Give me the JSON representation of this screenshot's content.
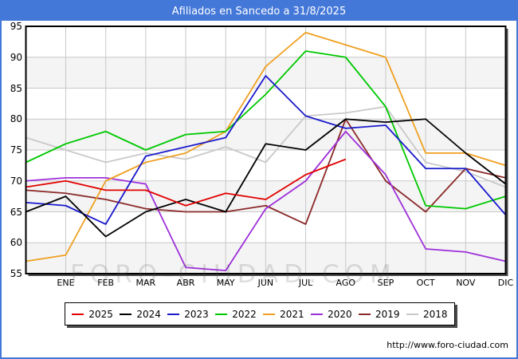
{
  "title": "Afiliados en Sancedo a 31/8/2025",
  "watermark": "FORO-CIUDAD.COM",
  "footer_url": "http://www.foro-ciudad.com",
  "colors": {
    "frame_blue": "#4478d8",
    "plot_border": "#000000",
    "grid": "#c8c8c8",
    "band_gray": "#f4f4f4",
    "shadow": "#4a4a4a"
  },
  "chart_data": {
    "type": "line",
    "title": "Afiliados en Sancedo a 31/8/2025",
    "categories": [
      "ENE",
      "FEB",
      "MAR",
      "ABR",
      "MAY",
      "JUN",
      "JUL",
      "AGO",
      "SEP",
      "OCT",
      "NOV",
      "DIC"
    ],
    "ylim": [
      55,
      95
    ],
    "ytick_step": 5,
    "grid": true,
    "legend_position": "bottom",
    "note_axis_start": "each series has a lead-in value drawn at the left axis before ENE",
    "series": [
      {
        "name": "2025",
        "color": "#e10000",
        "axis_start": 69,
        "values": [
          70,
          68.5,
          68.5,
          66,
          68,
          67,
          71,
          73.5,
          null,
          null,
          null,
          null
        ]
      },
      {
        "name": "2024",
        "color": "#000000",
        "axis_start": 65,
        "values": [
          67.5,
          61,
          65,
          67,
          65,
          76,
          75,
          80,
          79.5,
          80,
          74.5,
          69.5
        ]
      },
      {
        "name": "2023",
        "color": "#1a1acd",
        "axis_start": 66.5,
        "values": [
          66,
          63,
          74,
          75.5,
          77,
          87,
          80.5,
          78.5,
          79,
          72,
          72,
          64.5
        ]
      },
      {
        "name": "2022",
        "color": "#00c800",
        "axis_start": 73,
        "values": [
          76,
          78,
          75,
          77.5,
          78,
          84,
          91,
          90,
          82,
          66,
          65.5,
          67.5
        ]
      },
      {
        "name": "2021",
        "color": "#efa021",
        "axis_start": 57,
        "values": [
          58,
          70,
          73,
          74.5,
          78,
          88.5,
          94,
          92,
          90,
          74.5,
          74.5,
          72.5
        ]
      },
      {
        "name": "2020",
        "color": "#9e30d9",
        "axis_start": 70,
        "values": [
          70.5,
          70.5,
          69.5,
          56,
          55.5,
          65.5,
          70,
          78,
          71,
          59,
          58.5,
          57
        ]
      },
      {
        "name": "2019",
        "color": "#8b2a2a",
        "axis_start": 68.5,
        "values": [
          68,
          67,
          65.5,
          65,
          65,
          66,
          63,
          80,
          70,
          65,
          72,
          70.5
        ]
      },
      {
        "name": "2018",
        "color": "#c9c9c9",
        "axis_start": 77,
        "values": [
          75,
          73,
          74.5,
          73.5,
          75.5,
          73,
          80.5,
          81,
          82,
          73,
          71.5,
          69
        ]
      }
    ]
  }
}
